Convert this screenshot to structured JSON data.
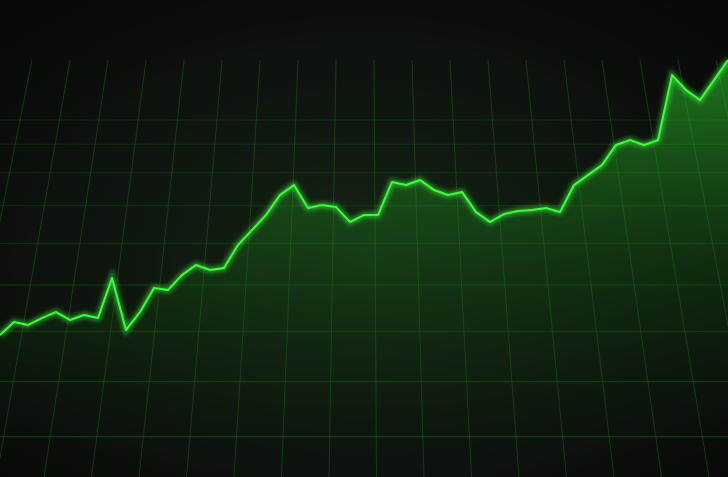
{
  "chart_data": {
    "type": "line",
    "color": "#3cff3c",
    "values": [
      142,
      155,
      152,
      159,
      165,
      157,
      162,
      159,
      199,
      147,
      165,
      189,
      187,
      202,
      212,
      207,
      209,
      232,
      247,
      262,
      282,
      292,
      269,
      272,
      270,
      255,
      262,
      262,
      295,
      292,
      297,
      287,
      282,
      285,
      265,
      255,
      263,
      266,
      267,
      269,
      265,
      292,
      302,
      312,
      332,
      337,
      332,
      337,
      402,
      387,
      377,
      397,
      417
    ],
    "ylim": [
      0,
      477
    ]
  }
}
